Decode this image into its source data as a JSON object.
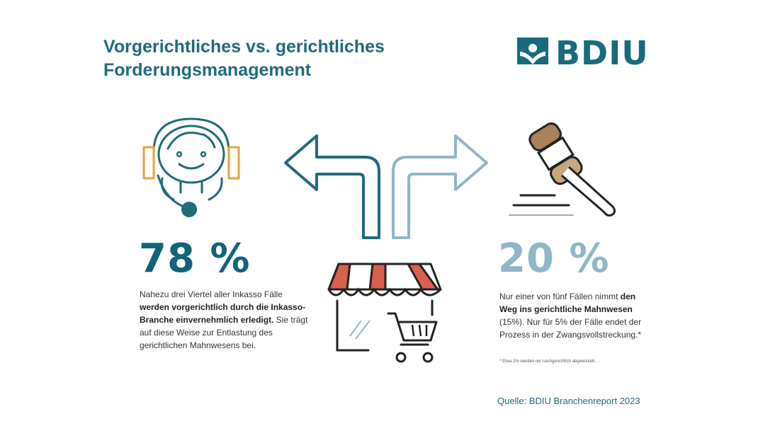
{
  "title": {
    "line1": "Vorgerichtliches vs. gerichtliches",
    "line2": "Forderungsmanagement"
  },
  "logo": {
    "text": "BDIU"
  },
  "left": {
    "percent": "78 %",
    "text_1": "Nahezu drei Viertel aller Inkasso Fälle ",
    "text_bold": "werden vorgerichtlich durch die Inkasso-Branche einvernehmlich erledigt.",
    "text_2": " Sie trägt auf diese Weise zur Entlastung des gerichtlichen Mahnwesens bei."
  },
  "right": {
    "percent": "20 %",
    "text_1": "Nur einer von fünf Fällen nimmt ",
    "text_bold": "den Weg ins gerichtliche Mahnwesen",
    "text_2": " (15%). Nur für 5% der Fälle endet der Prozess in der Zwangsvollstreckung.*"
  },
  "footnote": "*   Etwa 2% werden nur nachgerichtlich abgewickelt.",
  "source": "Quelle: BDIU Branchenreport 2023",
  "colors": {
    "dark_teal": "#1f6b7a",
    "light_teal": "#8fb7c6",
    "orange": "#e8a23e",
    "awning_red": "#d9604c",
    "gavel_brown": "#a9815a"
  },
  "icons": [
    "headset-agent-icon",
    "arrow-left-icon",
    "arrow-right-icon",
    "shop-cart-icon",
    "gavel-icon",
    "bdiu-logo-icon"
  ]
}
